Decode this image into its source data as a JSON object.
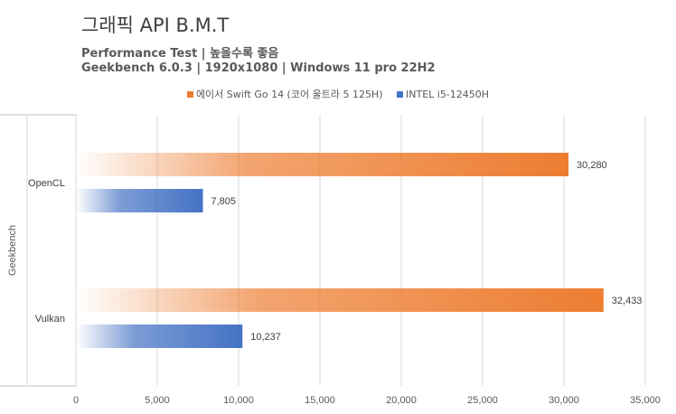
{
  "chart_data": {
    "type": "bar",
    "orientation": "horizontal",
    "title": "그래픽 API B.M.T",
    "subtitle_lines": [
      "Performance Test | 높을수록 좋음",
      "Geekbench 6.0.3 | 1920x1080 | Windows 11 pro 22H2"
    ],
    "group_label": "Geekbench",
    "categories": [
      "OpenCL",
      "Vulkan"
    ],
    "series": [
      {
        "name": "에이서 Swift Go 14 (코어 울트라 5 125H)",
        "color": "#ED7D31",
        "values": [
          30280,
          32433
        ],
        "labels": [
          "30,280",
          "32,433"
        ]
      },
      {
        "name": "INTEL i5-12450H",
        "color": "#4472C4",
        "values": [
          7805,
          10237
        ],
        "labels": [
          "7,805",
          "10,237"
        ]
      }
    ],
    "xlim": [
      0,
      35000
    ],
    "xticks": [
      0,
      5000,
      10000,
      15000,
      20000,
      25000,
      30000,
      35000
    ],
    "xtick_labels": [
      "0",
      "5,000",
      "10,000",
      "15,000",
      "20,000",
      "25,000",
      "30,000",
      "35,000"
    ],
    "grid": true,
    "legend_position": "top"
  }
}
